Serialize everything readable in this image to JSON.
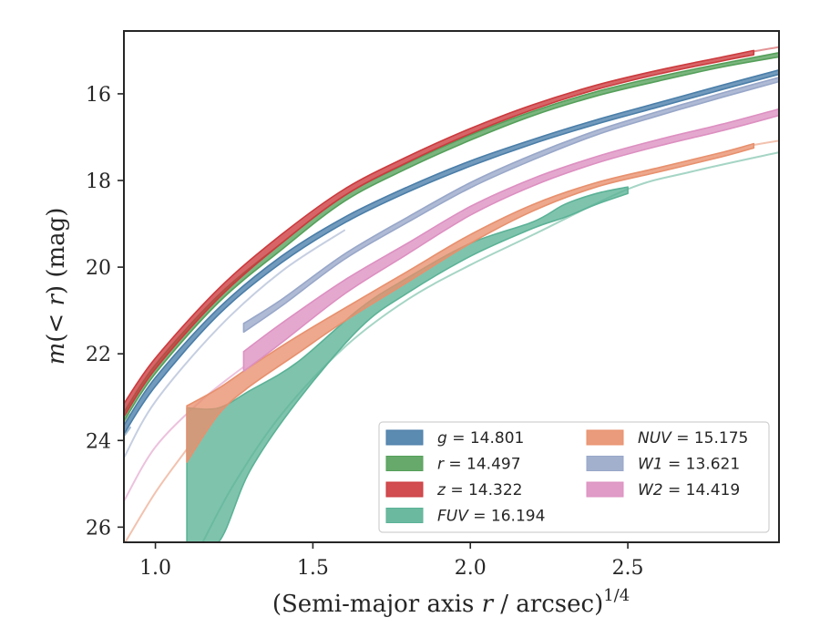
{
  "chart_data": {
    "type": "area",
    "x_label": "(Semi-major axis r / arcsec)",
    "x_label_parts": {
      "pre": "(Semi-major axis ",
      "var": "r",
      "post": " / arcsec)",
      "sup": "1/4"
    },
    "y_label_parts": {
      "m": "m",
      "lt": "(< ",
      "r": "r",
      "rest": ") (mag)"
    },
    "xlim": [
      0.9,
      2.98
    ],
    "ylim": [
      26.35,
      14.55
    ],
    "y_inverted": true,
    "x_ticks": [
      1.0,
      1.5,
      2.0,
      2.5
    ],
    "x_tick_labels": [
      "1.0",
      "1.5",
      "2.0",
      "2.5"
    ],
    "y_ticks": [
      16,
      18,
      20,
      22,
      24,
      26
    ],
    "y_tick_labels": [
      "16",
      "18",
      "20",
      "22",
      "24",
      "26"
    ],
    "grid": false,
    "legend_position": "lower-right",
    "series": [
      {
        "key": "g",
        "label_var": "g",
        "label_value": "14.801",
        "color": "#4a7ea9",
        "band": {
          "x": [
            0.9,
            1.0,
            1.2,
            1.4,
            1.6,
            1.8,
            2.0,
            2.2,
            2.4,
            2.6,
            2.8,
            2.98
          ],
          "y_upper": [
            23.65,
            22.55,
            20.95,
            19.75,
            18.85,
            18.15,
            17.55,
            17.05,
            16.6,
            16.2,
            15.8,
            15.45
          ],
          "y_lower": [
            23.85,
            22.75,
            21.1,
            19.9,
            18.98,
            18.27,
            17.67,
            17.15,
            16.7,
            16.3,
            15.9,
            15.55
          ]
        },
        "ext": {
          "x": [
            0.9,
            0.92
          ],
          "y": [
            23.9,
            23.7
          ]
        }
      },
      {
        "key": "r",
        "label_var": "r",
        "label_value": "14.497",
        "color": "#55a05a",
        "band": {
          "x": [
            0.9,
            1.0,
            1.2,
            1.4,
            1.6,
            1.8,
            2.0,
            2.2,
            2.4,
            2.6,
            2.8,
            2.98
          ],
          "y_upper": [
            23.35,
            22.25,
            20.65,
            19.45,
            18.35,
            17.6,
            16.95,
            16.4,
            15.95,
            15.6,
            15.3,
            15.05
          ],
          "y_lower": [
            23.55,
            22.45,
            20.82,
            19.6,
            18.48,
            17.72,
            17.07,
            16.5,
            16.05,
            15.7,
            15.38,
            15.15
          ]
        },
        "ext": {
          "x": [
            0.9,
            0.92
          ],
          "y": [
            23.6,
            23.4
          ]
        }
      },
      {
        "key": "z",
        "label_var": "z",
        "label_value": "14.322",
        "color": "#cc3a3d",
        "band": {
          "x": [
            0.9,
            1.0,
            1.2,
            1.4,
            1.6,
            1.8,
            2.0,
            2.2,
            2.4,
            2.6,
            2.8,
            2.9
          ],
          "y_upper": [
            23.15,
            22.1,
            20.5,
            19.25,
            18.2,
            17.45,
            16.8,
            16.25,
            15.8,
            15.45,
            15.15,
            15.0
          ],
          "y_lower": [
            23.45,
            22.35,
            20.72,
            19.45,
            18.35,
            17.58,
            16.92,
            16.36,
            15.9,
            15.54,
            15.24,
            15.1
          ]
        },
        "ext": {
          "x": [
            2.9,
            2.98
          ],
          "y": [
            15.02,
            14.92
          ]
        }
      },
      {
        "key": "FUV",
        "label_var": "FUV",
        "label_value": "16.194",
        "color": "#5bb296",
        "band": {
          "x": [
            1.1,
            1.2,
            1.3,
            1.45,
            1.65,
            1.8,
            2.0,
            2.2,
            2.3,
            2.4,
            2.5
          ],
          "y_upper": [
            23.25,
            23.25,
            22.85,
            22.2,
            20.95,
            20.25,
            19.45,
            18.95,
            18.55,
            18.3,
            18.15
          ],
          "y_lower": [
            26.35,
            26.35,
            24.7,
            23.1,
            21.4,
            20.6,
            19.75,
            19.1,
            18.85,
            18.55,
            18.3
          ]
        },
        "ext": {
          "x": [
            1.15,
            1.25,
            1.4,
            1.6,
            1.8,
            2.0,
            2.2,
            2.5,
            2.7,
            2.98
          ],
          "y": [
            26.35,
            25.0,
            23.4,
            21.85,
            20.75,
            19.95,
            19.25,
            18.2,
            17.8,
            17.35
          ]
        }
      },
      {
        "key": "NUV",
        "label_var": "NUV",
        "label_value": "15.175",
        "color": "#e8906d",
        "band": {
          "x": [
            1.1,
            1.2,
            1.3,
            1.45,
            1.6,
            1.8,
            2.0,
            2.2,
            2.4,
            2.6,
            2.8,
            2.9
          ],
          "y_upper": [
            23.2,
            22.8,
            22.3,
            21.6,
            20.95,
            20.1,
            19.25,
            18.55,
            18.05,
            17.7,
            17.35,
            17.15
          ],
          "y_lower": [
            24.5,
            23.4,
            22.75,
            22.0,
            21.25,
            20.35,
            19.45,
            18.7,
            18.15,
            17.8,
            17.45,
            17.25
          ]
        },
        "ext": {
          "x": [
            0.9,
            1.0,
            1.1
          ],
          "y": [
            26.4,
            25.2,
            24.2
          ]
        },
        "ext2": {
          "x": [
            2.9,
            2.98
          ],
          "y": [
            17.18,
            17.08
          ]
        }
      },
      {
        "key": "W1",
        "label_var": "W1",
        "label_value": "13.621",
        "color": "#98a7c9",
        "band": {
          "x": [
            1.28,
            1.4,
            1.6,
            1.8,
            2.0,
            2.2,
            2.4,
            2.6,
            2.8,
            2.98
          ],
          "y_upper": [
            21.3,
            20.75,
            19.7,
            18.85,
            18.05,
            17.4,
            16.85,
            16.4,
            15.98,
            15.62
          ],
          "y_lower": [
            21.5,
            20.9,
            19.82,
            18.97,
            18.17,
            17.52,
            16.95,
            16.5,
            16.08,
            15.72
          ]
        },
        "ext": {
          "x": [
            0.9,
            1.0,
            1.2,
            1.4,
            1.6
          ],
          "y": [
            24.4,
            23.1,
            21.4,
            20.1,
            19.15
          ]
        }
      },
      {
        "key": "W2",
        "label_var": "W2",
        "label_value": "14.419",
        "color": "#dd90c1",
        "band": {
          "x": [
            1.28,
            1.4,
            1.6,
            1.8,
            2.0,
            2.2,
            2.4,
            2.6,
            2.8,
            2.98
          ],
          "y_upper": [
            21.95,
            21.3,
            20.3,
            19.45,
            18.6,
            17.95,
            17.45,
            17.05,
            16.7,
            16.35
          ],
          "y_lower": [
            22.4,
            21.75,
            20.62,
            19.7,
            18.8,
            18.12,
            17.6,
            17.2,
            16.85,
            16.5
          ]
        },
        "ext": {
          "x": [
            0.9,
            1.0,
            1.15,
            1.28
          ],
          "y": [
            25.4,
            24.15,
            23.05,
            22.3
          ]
        }
      }
    ]
  }
}
